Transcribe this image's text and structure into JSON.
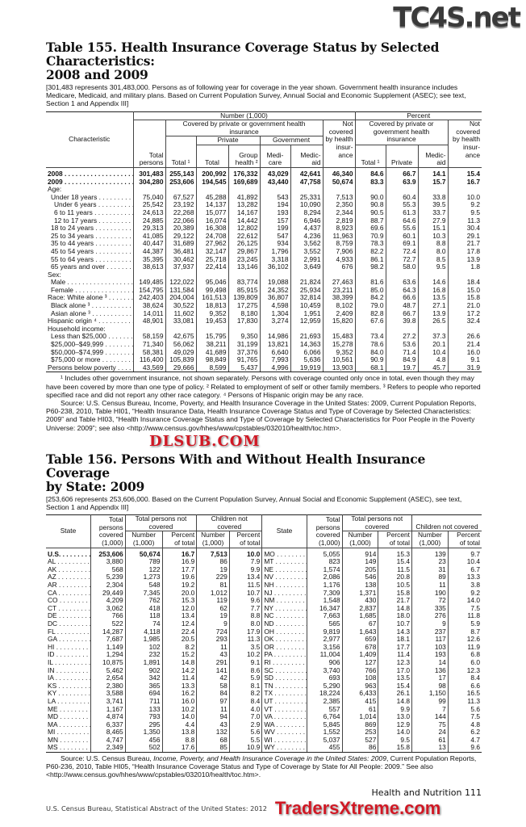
{
  "watermarks": {
    "top": "TC4S.net",
    "middle": "DLSUB.COM",
    "bottom": "TradersXtreme.com"
  },
  "table155": {
    "title_line1": "Table 155. Health Insurance Coverage Status by Selected Characteristics:",
    "title_line2": "2008 and 2009",
    "note": "[301,483 represents 301,483,000. Persons as of following year for coverage in the year shown. Government health insurance includes Medicare, Medicaid, and military plans. Based on Current Population Survey, Annual Social and Economic Supplement (ASEC); see text, Section 1 and Appendix III]",
    "headers": {
      "characteristic": "Characteristic",
      "number": "Number (1,000)",
      "percent": "Percent",
      "covered": "Covered by private or government health insurance",
      "not_covered": "Not covered by health insur-ance",
      "private": "Private",
      "government": "Government",
      "total_persons": "Total persons",
      "total1": "Total ¹",
      "total": "Total",
      "group_health": "Group health ²",
      "medicare": "Medi-care",
      "medicaid": "Medic-aid",
      "pct_covered": "Covered by private or government health insurance",
      "pct_total": "Total ¹",
      "pct_private": "Private",
      "pct_medicaid": "Medic-aid",
      "pct_not_covered": "Not covered by health insur-ance"
    },
    "rows": [
      {
        "label": "2008",
        "bold": true,
        "values": [
          "301,483",
          "255,143",
          "200,992",
          "176,332",
          "43,029",
          "42,641",
          "46,340",
          "84.6",
          "66.7",
          "14.1",
          "15.4"
        ]
      },
      {
        "label": "2009",
        "bold": true,
        "values": [
          "304,280",
          "253,606",
          "194,545",
          "169,689",
          "43,440",
          "47,758",
          "50,674",
          "83.3",
          "63.9",
          "15.7",
          "16.7"
        ]
      },
      {
        "label": "Age:",
        "heading": true,
        "values": []
      },
      {
        "label": "Under 18 years",
        "indent": 1,
        "values": [
          "75,040",
          "67,527",
          "45,288",
          "41,892",
          "543",
          "25,331",
          "7,513",
          "90.0",
          "60.4",
          "33.8",
          "10.0"
        ]
      },
      {
        "label": "Under 6 years",
        "indent": 2,
        "values": [
          "25,542",
          "23,192",
          "14,137",
          "13,282",
          "194",
          "10,090",
          "2,350",
          "90.8",
          "55.3",
          "39.5",
          "9.2"
        ]
      },
      {
        "label": "6 to 11 years",
        "indent": 2,
        "values": [
          "24,613",
          "22,268",
          "15,077",
          "14,167",
          "193",
          "8,294",
          "2,344",
          "90.5",
          "61.3",
          "33.7",
          "9.5"
        ]
      },
      {
        "label": "12 to 17 years",
        "indent": 2,
        "values": [
          "24,885",
          "22,066",
          "16,074",
          "14,442",
          "157",
          "6,946",
          "2,819",
          "88.7",
          "64.6",
          "27.9",
          "11.3"
        ]
      },
      {
        "label": "18 to 24 years",
        "indent": 1,
        "values": [
          "29,313",
          "20,389",
          "16,308",
          "12,802",
          "199",
          "4,437",
          "8,923",
          "69.6",
          "55.6",
          "15.1",
          "30.4"
        ]
      },
      {
        "label": "25 to 34 years",
        "indent": 1,
        "values": [
          "41,085",
          "29,122",
          "24,708",
          "22,612",
          "547",
          "4,236",
          "11,963",
          "70.9",
          "60.1",
          "10.3",
          "29.1"
        ]
      },
      {
        "label": "35 to 44 years",
        "indent": 1,
        "values": [
          "40,447",
          "31,689",
          "27,962",
          "26,125",
          "934",
          "3,562",
          "8,759",
          "78.3",
          "69.1",
          "8.8",
          "21.7"
        ]
      },
      {
        "label": "45 to 54 years",
        "indent": 1,
        "values": [
          "44,387",
          "36,481",
          "32,147",
          "29,867",
          "1,796",
          "3,552",
          "7,906",
          "82.2",
          "72.4",
          "8.0",
          "17.8"
        ]
      },
      {
        "label": "55 to 64 years",
        "indent": 1,
        "values": [
          "35,395",
          "30,462",
          "25,718",
          "23,245",
          "3,318",
          "2,991",
          "4,933",
          "86.1",
          "72.7",
          "8.5",
          "13.9"
        ]
      },
      {
        "label": "65 years and over",
        "indent": 1,
        "values": [
          "38,613",
          "37,937",
          "22,414",
          "13,146",
          "36,102",
          "3,649",
          "676",
          "98.2",
          "58.0",
          "9.5",
          "1.8"
        ]
      },
      {
        "label": "Sex:",
        "heading": true,
        "values": []
      },
      {
        "label": "Male",
        "indent": 1,
        "values": [
          "149,485",
          "122,022",
          "95,046",
          "83,774",
          "19,088",
          "21,824",
          "27,463",
          "81.6",
          "63.6",
          "14.6",
          "18.4"
        ]
      },
      {
        "label": "Female",
        "indent": 1,
        "values": [
          "154,795",
          "131,584",
          "99,498",
          "85,915",
          "24,352",
          "25,934",
          "23,211",
          "85.0",
          "64.3",
          "16.8",
          "15.0"
        ]
      },
      {
        "label": "Race: White alone ³",
        "values": [
          "242,403",
          "204,004",
          "161,513",
          "139,809",
          "36,807",
          "32,814",
          "38,399",
          "84.2",
          "66.6",
          "13.5",
          "15.8"
        ]
      },
      {
        "label": "Black alone ³",
        "indent": 1,
        "values": [
          "38,624",
          "30,522",
          "18,813",
          "17,275",
          "4,598",
          "10,459",
          "8,102",
          "79.0",
          "48.7",
          "27.1",
          "21.0"
        ]
      },
      {
        "label": "Asian alone ³",
        "indent": 1,
        "values": [
          "14,011",
          "11,602",
          "9,352",
          "8,180",
          "1,304",
          "1,951",
          "2,409",
          "82.8",
          "66.7",
          "13.9",
          "17.2"
        ]
      },
      {
        "label": "Hispanic origin ⁴",
        "values": [
          "48,901",
          "33,081",
          "19,453",
          "17,830",
          "3,274",
          "12,959",
          "15,820",
          "67.6",
          "39.8",
          "26.5",
          "32.4"
        ]
      },
      {
        "label": "Household income:",
        "heading": true,
        "values": []
      },
      {
        "label": "Less than $25,000",
        "indent": 1,
        "values": [
          "58,159",
          "42,675",
          "15,795",
          "9,350",
          "14,986",
          "21,693",
          "15,483",
          "73.4",
          "27.2",
          "37.3",
          "26.6"
        ]
      },
      {
        "label": "$25,000–$49,999",
        "indent": 1,
        "values": [
          "71,340",
          "56,062",
          "38,211",
          "31,199",
          "13,821",
          "14,363",
          "15,278",
          "78.6",
          "53.6",
          "20.1",
          "21.4"
        ]
      },
      {
        "label": "$50,000–$74,999",
        "indent": 1,
        "values": [
          "58,381",
          "49,029",
          "41,689",
          "37,376",
          "6,640",
          "6,066",
          "9,352",
          "84.0",
          "71.4",
          "10.4",
          "16.0"
        ]
      },
      {
        "label": "$75,000 or more",
        "indent": 1,
        "values": [
          "116,400",
          "105,839",
          "98,849",
          "91,765",
          "7,993",
          "5,636",
          "10,561",
          "90.9",
          "84.9",
          "4.8",
          "9.1"
        ]
      },
      {
        "label": "Persons below poverty",
        "values": [
          "43,569",
          "29,666",
          "8,599",
          "5,437",
          "4,996",
          "19,919",
          "13,903",
          "68.1",
          "19.7",
          "45.7",
          "31.9"
        ]
      }
    ],
    "footnotes": "¹ Includes other government insurance, not shown separately. Persons with coverage counted only once in total, even though they may have been covered by more than one type of policy. ² Related to employment of self or other family members. ³ Refers to people who reported specified race and did not report any other race category. ⁴ Persons of Hispanic origin may be any race.",
    "source": "Source: U.S. Census Bureau, Income, Poverty, and Health Insurance Coverage in the United States: 2009, Current Population Reports, P60-238, 2010, Table HI01, “Health Insurance Data, Health Insurance Coverage Status and Type of Coverage by Selected Characteristics: 2009” and Table HI03, “Health Insurance Coverage Status and Type of Coverage by Selected Characteristics for Poor People in the Poverty Universe: 2009”; see also <http://www.census.gov/hhes/www/cpstables/032010/health/toc.htm>."
  },
  "table156": {
    "title_line1": "Table 156. Persons With and Without Health Insurance Coverage",
    "title_line2": "by State: 2009",
    "note": "[253,606 represents 253,606,000. Based on the Current Population Survey, Annual Social and Economic Supplement (ASEC), see text, Section 1 and Appendix III]",
    "headers": {
      "state": "State",
      "total_persons_covered": "Total persons covered (1,000)",
      "total_not_covered": "Total persons not covered",
      "children_not_covered": "Children not covered",
      "number": "Number (1,000)",
      "percent": "Percent of total"
    },
    "left": [
      {
        "state": "U.S.",
        "bold": true,
        "values": [
          "253,606",
          "50,674",
          "16.7",
          "7,513",
          "10.0"
        ]
      },
      {
        "state": "AL",
        "values": [
          "3,880",
          "789",
          "16.9",
          "86",
          "7.9"
        ]
      },
      {
        "state": "AK",
        "values": [
          "568",
          "122",
          "17.7",
          "19",
          "9.9"
        ]
      },
      {
        "state": "AZ",
        "values": [
          "5,239",
          "1,273",
          "19.6",
          "229",
          "13.4"
        ]
      },
      {
        "state": "AR",
        "values": [
          "2,304",
          "548",
          "19.2",
          "81",
          "11.5"
        ]
      },
      {
        "state": "CA",
        "values": [
          "29,449",
          "7,345",
          "20.0",
          "1,012",
          "10.7"
        ]
      },
      {
        "state": "CO",
        "values": [
          "4,209",
          "762",
          "15.3",
          "119",
          "9.6"
        ]
      },
      {
        "state": "CT",
        "values": [
          "3,062",
          "418",
          "12.0",
          "62",
          "7.7"
        ]
      },
      {
        "state": "DE",
        "values": [
          "766",
          "118",
          "13.4",
          "19",
          "8.8"
        ]
      },
      {
        "state": "DC",
        "values": [
          "522",
          "74",
          "12.4",
          "9",
          "8.0"
        ]
      },
      {
        "state": "FL",
        "values": [
          "14,287",
          "4,118",
          "22.4",
          "724",
          "17.9"
        ]
      },
      {
        "state": "GA",
        "values": [
          "7,687",
          "1,985",
          "20.5",
          "293",
          "11.3"
        ]
      },
      {
        "state": "HI",
        "values": [
          "1,149",
          "102",
          "8.2",
          "11",
          "3.5"
        ]
      },
      {
        "state": "ID",
        "values": [
          "1,294",
          "232",
          "15.2",
          "43",
          "10.2"
        ]
      },
      {
        "state": "IL",
        "values": [
          "10,875",
          "1,891",
          "14.8",
          "291",
          "9.1"
        ]
      },
      {
        "state": "IN",
        "values": [
          "5,462",
          "902",
          "14.2",
          "141",
          "8.6"
        ]
      },
      {
        "state": "IA",
        "values": [
          "2,654",
          "342",
          "11.4",
          "42",
          "5.9"
        ]
      },
      {
        "state": "KS",
        "values": [
          "2,380",
          "365",
          "13.3",
          "58",
          "8.1"
        ]
      },
      {
        "state": "KY",
        "values": [
          "3,588",
          "694",
          "16.2",
          "84",
          "8.2"
        ]
      },
      {
        "state": "LA",
        "values": [
          "3,741",
          "711",
          "16.0",
          "97",
          "8.4"
        ]
      },
      {
        "state": "ME",
        "values": [
          "1,167",
          "133",
          "10.2",
          "11",
          "4.0"
        ]
      },
      {
        "state": "MD",
        "values": [
          "4,874",
          "793",
          "14.0",
          "94",
          "7.0"
        ]
      },
      {
        "state": "MA",
        "values": [
          "6,337",
          "295",
          "4.4",
          "43",
          "2.9"
        ]
      },
      {
        "state": "MI",
        "values": [
          "8,465",
          "1,350",
          "13.8",
          "132",
          "5.6"
        ]
      },
      {
        "state": "MN",
        "values": [
          "4,747",
          "456",
          "8.8",
          "68",
          "5.5"
        ]
      },
      {
        "state": "MS",
        "values": [
          "2,349",
          "502",
          "17.6",
          "85",
          "10.9"
        ]
      }
    ],
    "right": [
      {
        "state": "MO",
        "values": [
          "5,055",
          "914",
          "15.3",
          "139",
          "9.7"
        ]
      },
      {
        "state": "MT",
        "values": [
          "823",
          "149",
          "15.4",
          "23",
          "10.4"
        ]
      },
      {
        "state": "NE",
        "values": [
          "1,574",
          "205",
          "11.5",
          "31",
          "6.7"
        ]
      },
      {
        "state": "NV",
        "values": [
          "2,086",
          "546",
          "20.8",
          "89",
          "13.3"
        ]
      },
      {
        "state": "NH",
        "values": [
          "1,176",
          "138",
          "10.5",
          "11",
          "3.8"
        ]
      },
      {
        "state": "NJ",
        "values": [
          "7,309",
          "1,371",
          "15.8",
          "190",
          "9.2"
        ]
      },
      {
        "state": "NM",
        "values": [
          "1,548",
          "430",
          "21.7",
          "72",
          "14.0"
        ]
      },
      {
        "state": "NY",
        "values": [
          "16,347",
          "2,837",
          "14.8",
          "335",
          "7.5"
        ]
      },
      {
        "state": "NC",
        "values": [
          "7,663",
          "1,685",
          "18.0",
          "276",
          "11.8"
        ]
      },
      {
        "state": "ND",
        "values": [
          "565",
          "67",
          "10.7",
          "9",
          "5.9"
        ]
      },
      {
        "state": "OH",
        "values": [
          "9,819",
          "1,643",
          "14.3",
          "237",
          "8.7"
        ]
      },
      {
        "state": "OK",
        "values": [
          "2,977",
          "659",
          "18.1",
          "117",
          "12.6"
        ]
      },
      {
        "state": "OR",
        "values": [
          "3,156",
          "678",
          "17.7",
          "103",
          "11.9"
        ]
      },
      {
        "state": "PA",
        "values": [
          "11,004",
          "1,409",
          "11.4",
          "193",
          "6.8"
        ]
      },
      {
        "state": "RI",
        "values": [
          "906",
          "127",
          "12.3",
          "14",
          "6.0"
        ]
      },
      {
        "state": "SC",
        "values": [
          "3,740",
          "766",
          "17.0",
          "136",
          "12.3"
        ]
      },
      {
        "state": "SD",
        "values": [
          "693",
          "108",
          "13.5",
          "17",
          "8.4"
        ]
      },
      {
        "state": "TN",
        "values": [
          "5,290",
          "963",
          "15.4",
          "98",
          "6.6"
        ]
      },
      {
        "state": "TX",
        "values": [
          "18,224",
          "6,433",
          "26.1",
          "1,150",
          "16.5"
        ]
      },
      {
        "state": "UT",
        "values": [
          "2,385",
          "415",
          "14.8",
          "99",
          "11.3"
        ]
      },
      {
        "state": "VT",
        "values": [
          "557",
          "61",
          "9.9",
          "7",
          "5.6"
        ]
      },
      {
        "state": "VA",
        "values": [
          "6,764",
          "1,014",
          "13.0",
          "144",
          "7.5"
        ]
      },
      {
        "state": "WA",
        "values": [
          "5,845",
          "869",
          "12.9",
          "75",
          "4.8"
        ]
      },
      {
        "state": "WV",
        "values": [
          "1,552",
          "253",
          "14.0",
          "24",
          "6.2"
        ]
      },
      {
        "state": "WI",
        "values": [
          "5,037",
          "527",
          "9.5",
          "61",
          "4.7"
        ]
      },
      {
        "state": "WY",
        "values": [
          "455",
          "86",
          "15.8",
          "13",
          "9.6"
        ]
      }
    ],
    "source_prefix": "Source: U.S. Census Bureau, ",
    "source_title": "Income, Poverty, and Health Insurance Coverage in the United States: 2009",
    "source_rest": ", Current Population Reports, P60-236, 2010, Table HI05, “Health Insurance Coverage Status and Type of Coverage by State for All People: 2009.” See also <http://www.census.gov/hhes/www/cpstables/032010/health/toc.htm>."
  },
  "footer": {
    "left": "U.S. Census Bureau, Statistical Abstract of the United States: 2012",
    "right": "Health and Nutrition  111"
  }
}
